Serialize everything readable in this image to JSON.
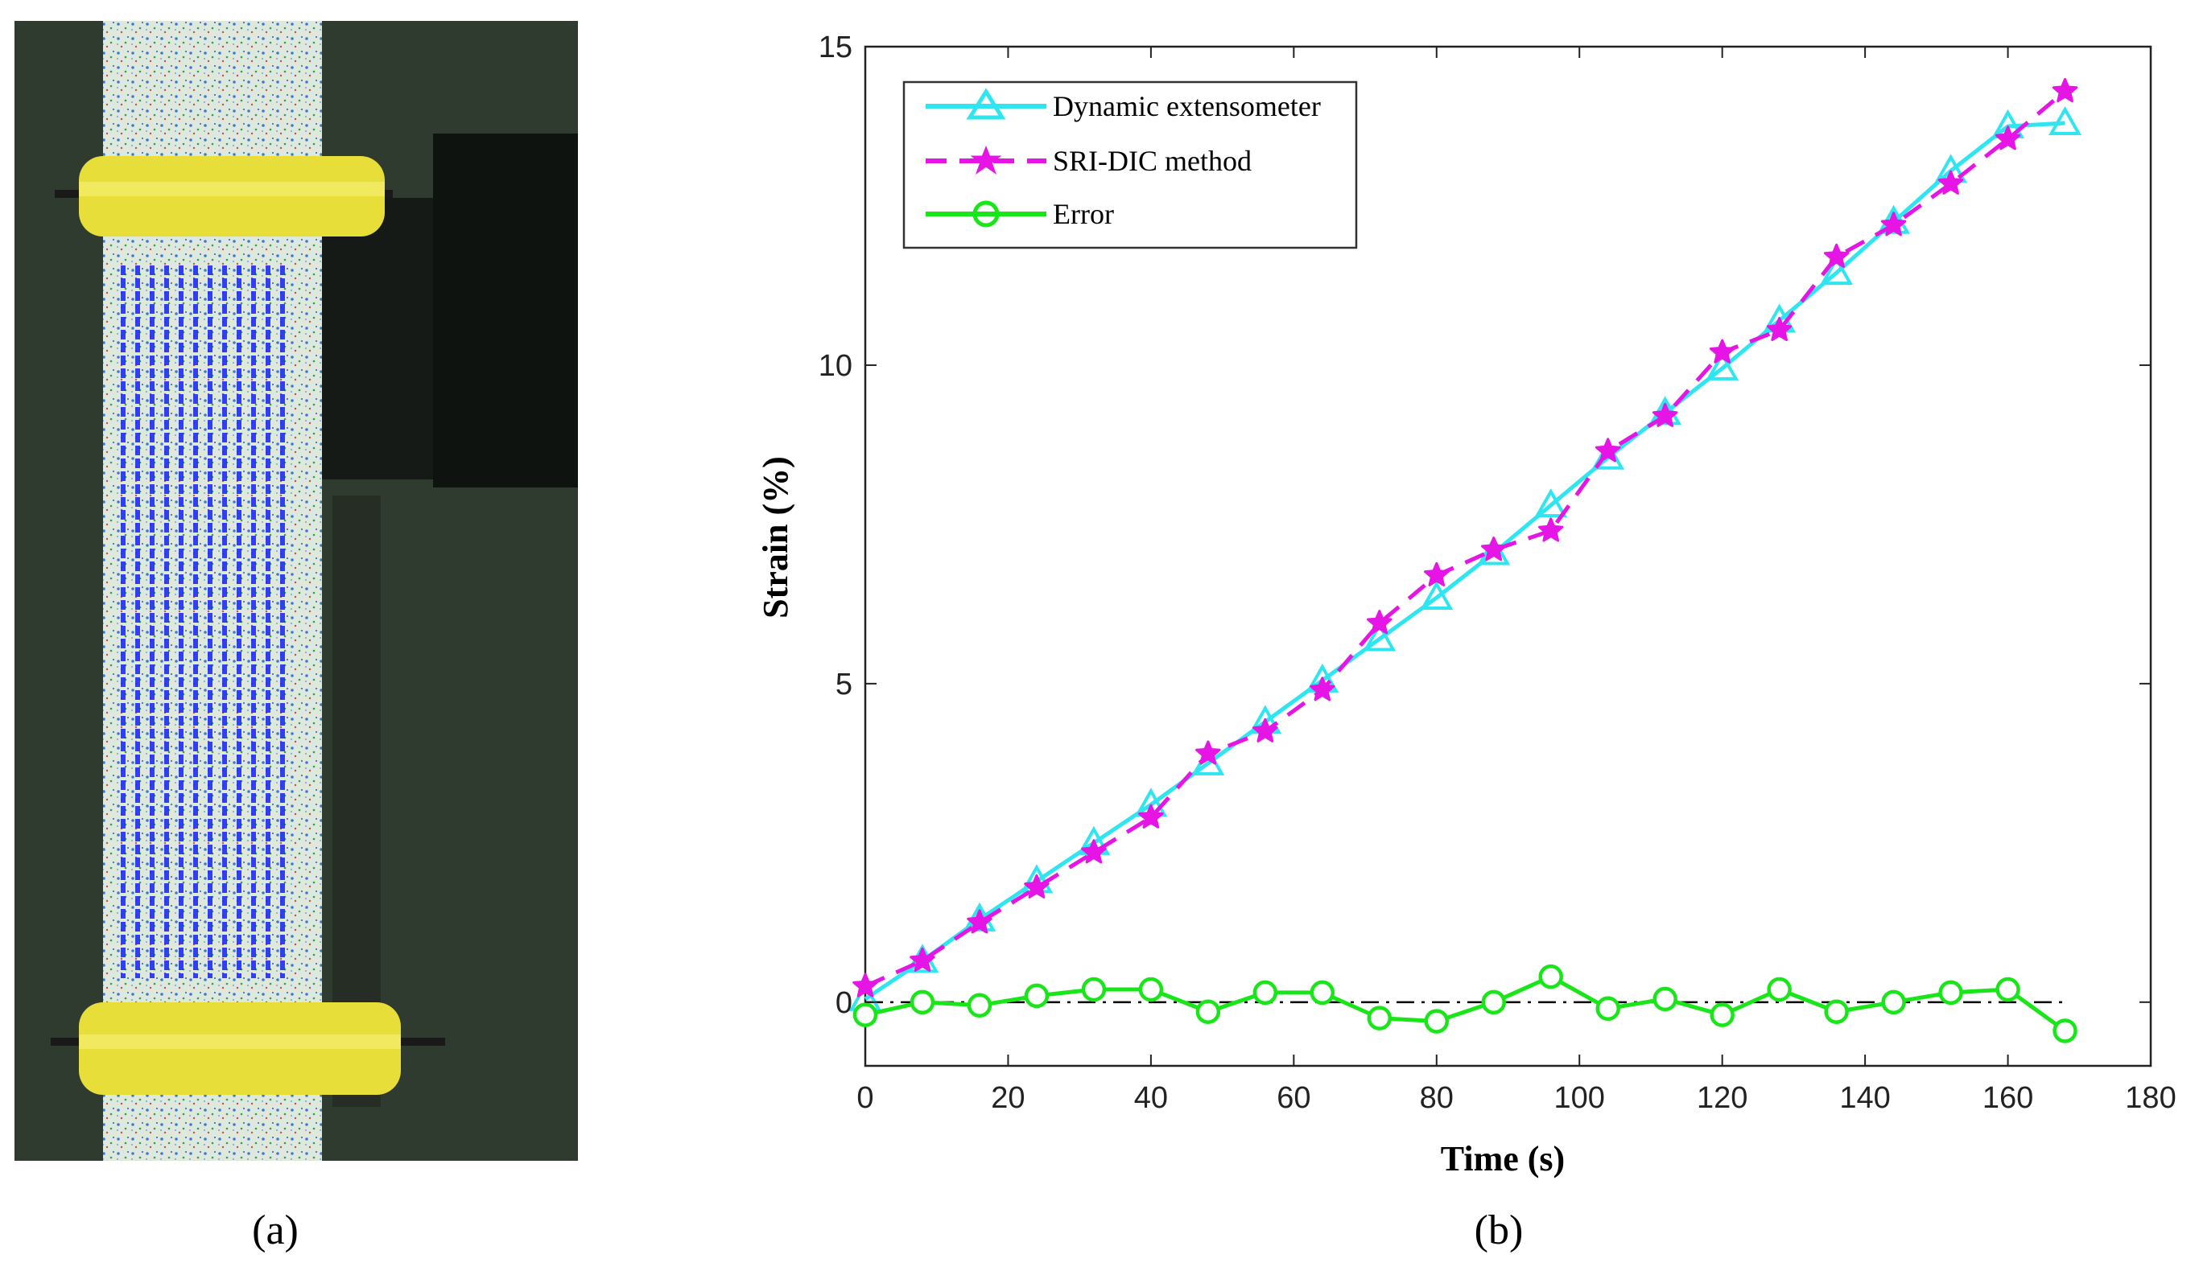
{
  "panel_a": {
    "caption": "(a)",
    "colors": {
      "background": "#2f3b2e",
      "specimen": "#dfe8dc",
      "clamp": "#e8de3a",
      "grid": "#1f2cf0",
      "fixture": "#161a16"
    }
  },
  "panel_b": {
    "caption": "(b)"
  },
  "chart_data": {
    "type": "line",
    "title": "",
    "xlabel": "Time (s)",
    "ylabel": "Strain (%)",
    "xlim": [
      0,
      180
    ],
    "ylim": [
      -1,
      15
    ],
    "xticks": [
      "0",
      "20",
      "40",
      "60",
      "80",
      "100",
      "120",
      "140",
      "160",
      "180"
    ],
    "yticks": [
      "0",
      "5",
      "10",
      "15"
    ],
    "grid": false,
    "legend_position": "top-left",
    "reference_line": {
      "y": 0,
      "style": "dash-dot",
      "color": "#000000"
    },
    "series": [
      {
        "name": "Dynamic extensometer",
        "color": "#2fe5ef",
        "marker": "triangle",
        "line": "solid",
        "x": [
          0,
          8,
          16,
          24,
          32,
          40,
          48,
          56,
          64,
          72,
          80,
          88,
          96,
          104,
          112,
          120,
          128,
          136,
          144,
          152,
          160,
          168
        ],
        "values": [
          0.05,
          0.65,
          1.3,
          1.9,
          2.5,
          3.1,
          3.75,
          4.4,
          5.05,
          5.7,
          6.35,
          7.05,
          7.8,
          8.55,
          9.25,
          9.95,
          10.7,
          11.45,
          12.25,
          13.05,
          13.75,
          13.8
        ]
      },
      {
        "name": "SRI-DIC method",
        "color": "#e615e6",
        "marker": "star",
        "line": "dashed",
        "x": [
          0,
          8,
          16,
          24,
          32,
          40,
          48,
          56,
          64,
          72,
          80,
          88,
          96,
          104,
          112,
          120,
          128,
          136,
          144,
          152,
          160,
          168
        ],
        "values": [
          0.25,
          0.65,
          1.25,
          1.8,
          2.35,
          2.9,
          3.9,
          4.25,
          4.9,
          5.95,
          6.7,
          7.1,
          7.4,
          8.65,
          9.2,
          10.2,
          10.55,
          11.7,
          12.2,
          12.85,
          13.55,
          14.3
        ]
      },
      {
        "name": "Error",
        "color": "#19e619",
        "marker": "circle",
        "line": "solid",
        "x": [
          0,
          8,
          16,
          24,
          32,
          40,
          48,
          56,
          64,
          72,
          80,
          88,
          96,
          104,
          112,
          120,
          128,
          136,
          144,
          152,
          160,
          168
        ],
        "values": [
          -0.2,
          0.0,
          -0.05,
          0.1,
          0.2,
          0.2,
          -0.15,
          0.15,
          0.15,
          -0.25,
          -0.3,
          0.0,
          0.4,
          -0.1,
          0.05,
          -0.2,
          0.2,
          -0.15,
          0.0,
          0.15,
          0.2,
          -0.45
        ]
      }
    ]
  }
}
